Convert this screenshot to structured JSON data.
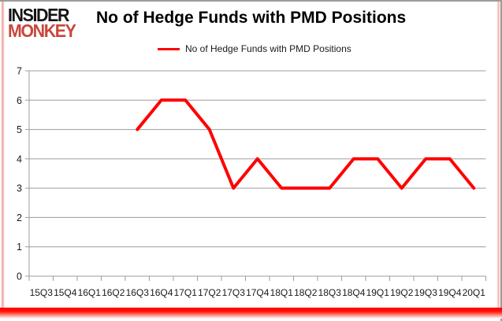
{
  "header": {
    "logo_line1": "INSIDER",
    "logo_line2": "MONKEY",
    "title": "No of Hedge Funds with PMD Positions"
  },
  "legend": {
    "label": "No of Hedge Funds with PMD Positions"
  },
  "colors": {
    "line": "#FF0000",
    "grid": "#9c9c9c",
    "axis_label": "#1a1a1a",
    "logo_red": "#c8473b",
    "frame_gray": "#9b9b9b",
    "bottom_glow_red": "#ff0000"
  },
  "chart_data": {
    "type": "line",
    "title": "No of Hedge Funds with PMD Positions",
    "categories": [
      "15Q3",
      "15Q4",
      "16Q1",
      "16Q2",
      "16Q3",
      "16Q4",
      "17Q1",
      "17Q2",
      "17Q3",
      "17Q4",
      "18Q1",
      "18Q2",
      "18Q3",
      "18Q4",
      "19Q1",
      "19Q2",
      "19Q3",
      "19Q4",
      "20Q1"
    ],
    "series": [
      {
        "name": "No of Hedge Funds with PMD Positions",
        "color": "#FF0000",
        "values": [
          null,
          null,
          null,
          null,
          5,
          6,
          6,
          5,
          3,
          4,
          3,
          3,
          3,
          4,
          4,
          3,
          4,
          4,
          3
        ]
      }
    ],
    "xlabel": "",
    "ylabel": "",
    "ylim": [
      0,
      7
    ],
    "yticks": [
      0,
      1,
      2,
      3,
      4,
      5,
      6,
      7
    ],
    "grid": true,
    "legend_position": "top-center"
  }
}
